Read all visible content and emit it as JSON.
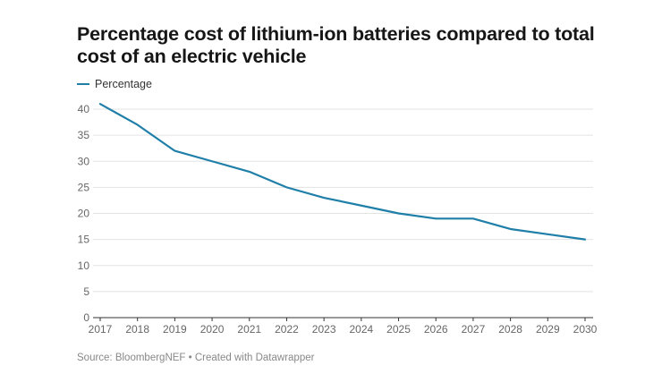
{
  "chart_data": {
    "type": "line",
    "title": "Percentage cost of lithium-ion batteries compared to total cost of an electric vehicle",
    "source": "Source: BloombergNEF • Created with Datawrapper",
    "legend_position": "top-left",
    "grid": true,
    "x": [
      2017,
      2018,
      2019,
      2020,
      2021,
      2022,
      2023,
      2024,
      2025,
      2026,
      2027,
      2028,
      2029,
      2030
    ],
    "xlim": [
      2017,
      2030
    ],
    "ylim": [
      0,
      40
    ],
    "yticks": [
      0,
      5,
      10,
      15,
      20,
      25,
      30,
      35,
      40
    ],
    "series": [
      {
        "name": "Percentage",
        "color": "#1f7fa8",
        "values": [
          41,
          37,
          32,
          30,
          28,
          25,
          23,
          21.5,
          20,
          19,
          19,
          17,
          16,
          15
        ]
      }
    ]
  }
}
